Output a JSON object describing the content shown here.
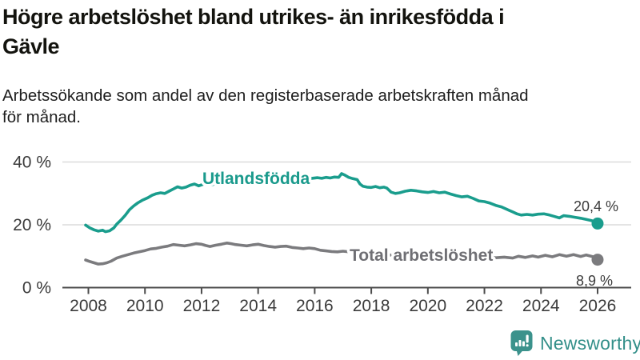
{
  "title": "Högre arbetslöshet bland utrikes- än inrikesfödda i\nGävle",
  "subtitle": "Arbetssökande som andel av den registerbaserade arbetskraften månad\nför månad.",
  "branding": {
    "logo_text": "Newsworthy",
    "logo_color": "#3b928c"
  },
  "chart_data": {
    "type": "line",
    "title": "Högre arbetslöshet bland utrikes- än inrikesfödda i Gävle",
    "subtitle": "Arbetssökande som andel av den registerbaserade arbetskraften månad för månad.",
    "xlabel": "",
    "ylabel": "",
    "grid": "horizontal",
    "legend_position": "inline-labels",
    "x_axis": {
      "ticks": [
        2008,
        2010,
        2012,
        2014,
        2016,
        2018,
        2020,
        2022,
        2024,
        2026
      ],
      "range": [
        2007.9,
        2027.2
      ]
    },
    "y_axis": {
      "tick_values": [
        0,
        20,
        40
      ],
      "tick_labels": [
        "0 %",
        "20 %",
        "40 %"
      ],
      "range": [
        0,
        45
      ],
      "unit": "%"
    },
    "series": [
      {
        "name": "Utlandsfödda",
        "color": "#1a9d8d",
        "label_color": "#1a9a8c",
        "end_label": "20,4 %",
        "end_value": 20.4,
        "points": [
          [
            2007.9,
            19.9
          ],
          [
            2008.05,
            19.0
          ],
          [
            2008.2,
            18.4
          ],
          [
            2008.35,
            18.0
          ],
          [
            2008.5,
            18.3
          ],
          [
            2008.6,
            17.8
          ],
          [
            2008.75,
            18.1
          ],
          [
            2008.9,
            19.0
          ],
          [
            2009.0,
            20.2
          ],
          [
            2009.15,
            21.5
          ],
          [
            2009.3,
            23.0
          ],
          [
            2009.45,
            24.8
          ],
          [
            2009.6,
            26.0
          ],
          [
            2009.75,
            27.0
          ],
          [
            2009.9,
            27.8
          ],
          [
            2010.1,
            28.6
          ],
          [
            2010.25,
            29.4
          ],
          [
            2010.4,
            29.9
          ],
          [
            2010.55,
            30.2
          ],
          [
            2010.7,
            30.0
          ],
          [
            2010.85,
            30.7
          ],
          [
            2011.0,
            31.4
          ],
          [
            2011.15,
            32.1
          ],
          [
            2011.3,
            31.7
          ],
          [
            2011.45,
            32.0
          ],
          [
            2011.6,
            32.6
          ],
          [
            2011.75,
            33.0
          ],
          [
            2011.9,
            32.4
          ],
          [
            2012.05,
            32.9
          ],
          [
            2012.2,
            33.4
          ],
          [
            2012.35,
            32.7
          ],
          [
            2012.5,
            33.1
          ],
          [
            2012.65,
            33.6
          ],
          [
            2012.8,
            33.1
          ],
          [
            2012.95,
            33.7
          ],
          [
            2013.1,
            33.2
          ],
          [
            2013.3,
            33.4
          ],
          [
            2013.5,
            33.2
          ],
          [
            2013.7,
            33.5
          ],
          [
            2013.9,
            33.7
          ],
          [
            2014.1,
            33.5
          ],
          [
            2014.3,
            33.8
          ],
          [
            2014.5,
            33.9
          ],
          [
            2014.7,
            34.1
          ],
          [
            2014.9,
            33.9
          ],
          [
            2015.1,
            34.2
          ],
          [
            2015.3,
            34.4
          ],
          [
            2015.5,
            34.3
          ],
          [
            2015.7,
            34.6
          ],
          [
            2015.9,
            34.8
          ],
          [
            2016.1,
            35.0
          ],
          [
            2016.25,
            34.8
          ],
          [
            2016.4,
            35.1
          ],
          [
            2016.55,
            34.9
          ],
          [
            2016.7,
            35.2
          ],
          [
            2016.85,
            35.1
          ],
          [
            2016.95,
            36.3
          ],
          [
            2017.05,
            35.9
          ],
          [
            2017.2,
            35.1
          ],
          [
            2017.35,
            34.7
          ],
          [
            2017.5,
            34.4
          ],
          [
            2017.6,
            33.0
          ],
          [
            2017.7,
            32.3
          ],
          [
            2017.85,
            32.0
          ],
          [
            2018.0,
            31.9
          ],
          [
            2018.15,
            32.2
          ],
          [
            2018.3,
            31.8
          ],
          [
            2018.45,
            32.0
          ],
          [
            2018.55,
            31.7
          ],
          [
            2018.7,
            30.4
          ],
          [
            2018.85,
            30.0
          ],
          [
            2019.0,
            30.2
          ],
          [
            2019.2,
            30.7
          ],
          [
            2019.4,
            31.0
          ],
          [
            2019.6,
            30.8
          ],
          [
            2019.8,
            30.5
          ],
          [
            2020.0,
            30.3
          ],
          [
            2020.2,
            30.6
          ],
          [
            2020.4,
            30.2
          ],
          [
            2020.6,
            30.4
          ],
          [
            2020.8,
            29.8
          ],
          [
            2021.0,
            29.3
          ],
          [
            2021.2,
            28.9
          ],
          [
            2021.4,
            29.1
          ],
          [
            2021.6,
            28.4
          ],
          [
            2021.8,
            27.6
          ],
          [
            2022.0,
            27.4
          ],
          [
            2022.2,
            26.9
          ],
          [
            2022.4,
            26.2
          ],
          [
            2022.6,
            25.7
          ],
          [
            2022.8,
            24.9
          ],
          [
            2023.0,
            24.1
          ],
          [
            2023.15,
            23.5
          ],
          [
            2023.3,
            23.1
          ],
          [
            2023.5,
            23.3
          ],
          [
            2023.7,
            23.1
          ],
          [
            2023.9,
            23.4
          ],
          [
            2024.1,
            23.5
          ],
          [
            2024.3,
            23.1
          ],
          [
            2024.5,
            22.6
          ],
          [
            2024.65,
            22.2
          ],
          [
            2024.8,
            22.9
          ],
          [
            2025.0,
            22.7
          ],
          [
            2025.2,
            22.4
          ],
          [
            2025.4,
            22.1
          ],
          [
            2025.6,
            21.7
          ],
          [
            2025.8,
            21.3
          ],
          [
            2026.0,
            20.4
          ]
        ]
      },
      {
        "name": "Total arbetslöshet",
        "color": "#7b7b7e",
        "label_color": "#6f6f74",
        "end_label": "8,9 %",
        "end_value": 8.9,
        "points": [
          [
            2007.9,
            8.8
          ],
          [
            2008.05,
            8.3
          ],
          [
            2008.2,
            7.9
          ],
          [
            2008.35,
            7.5
          ],
          [
            2008.5,
            7.6
          ],
          [
            2008.65,
            7.9
          ],
          [
            2008.8,
            8.4
          ],
          [
            2009.0,
            9.4
          ],
          [
            2009.2,
            10.0
          ],
          [
            2009.4,
            10.5
          ],
          [
            2009.6,
            11.0
          ],
          [
            2009.8,
            11.4
          ],
          [
            2010.0,
            11.8
          ],
          [
            2010.2,
            12.3
          ],
          [
            2010.4,
            12.5
          ],
          [
            2010.6,
            12.9
          ],
          [
            2010.8,
            13.2
          ],
          [
            2011.0,
            13.7
          ],
          [
            2011.2,
            13.5
          ],
          [
            2011.4,
            13.3
          ],
          [
            2011.6,
            13.6
          ],
          [
            2011.8,
            14.0
          ],
          [
            2012.0,
            13.8
          ],
          [
            2012.15,
            13.4
          ],
          [
            2012.3,
            13.1
          ],
          [
            2012.5,
            13.5
          ],
          [
            2012.7,
            13.8
          ],
          [
            2012.9,
            14.2
          ],
          [
            2013.05,
            14.0
          ],
          [
            2013.2,
            13.7
          ],
          [
            2013.4,
            13.5
          ],
          [
            2013.6,
            13.3
          ],
          [
            2013.8,
            13.6
          ],
          [
            2014.0,
            13.8
          ],
          [
            2014.2,
            13.4
          ],
          [
            2014.4,
            13.1
          ],
          [
            2014.6,
            12.9
          ],
          [
            2014.8,
            13.1
          ],
          [
            2015.0,
            13.2
          ],
          [
            2015.2,
            12.8
          ],
          [
            2015.4,
            12.6
          ],
          [
            2015.6,
            12.4
          ],
          [
            2015.8,
            12.6
          ],
          [
            2016.0,
            12.4
          ],
          [
            2016.2,
            11.9
          ],
          [
            2016.4,
            11.7
          ],
          [
            2016.6,
            11.5
          ],
          [
            2016.8,
            11.4
          ],
          [
            2017.0,
            11.6
          ],
          [
            2017.3,
            11.3
          ],
          [
            2017.6,
            11.0
          ],
          [
            2017.9,
            10.8
          ],
          [
            2018.2,
            10.6
          ],
          [
            2018.5,
            10.5
          ],
          [
            2018.8,
            10.3
          ],
          [
            2019.1,
            10.2
          ],
          [
            2019.4,
            10.1
          ],
          [
            2019.7,
            10.2
          ],
          [
            2020.0,
            10.4
          ],
          [
            2020.3,
            11.0
          ],
          [
            2020.6,
            10.9
          ],
          [
            2020.9,
            10.6
          ],
          [
            2021.2,
            10.3
          ],
          [
            2021.5,
            10.0
          ],
          [
            2021.8,
            9.8
          ],
          [
            2022.1,
            9.7
          ],
          [
            2022.4,
            9.5
          ],
          [
            2022.7,
            9.7
          ],
          [
            2023.0,
            9.4
          ],
          [
            2023.2,
            10.0
          ],
          [
            2023.45,
            9.6
          ],
          [
            2023.7,
            10.1
          ],
          [
            2023.9,
            9.7
          ],
          [
            2024.15,
            10.3
          ],
          [
            2024.4,
            9.8
          ],
          [
            2024.65,
            10.5
          ],
          [
            2024.9,
            10.0
          ],
          [
            2025.15,
            10.5
          ],
          [
            2025.4,
            9.9
          ],
          [
            2025.6,
            10.4
          ],
          [
            2025.85,
            9.8
          ],
          [
            2026.0,
            8.9
          ]
        ]
      }
    ]
  }
}
